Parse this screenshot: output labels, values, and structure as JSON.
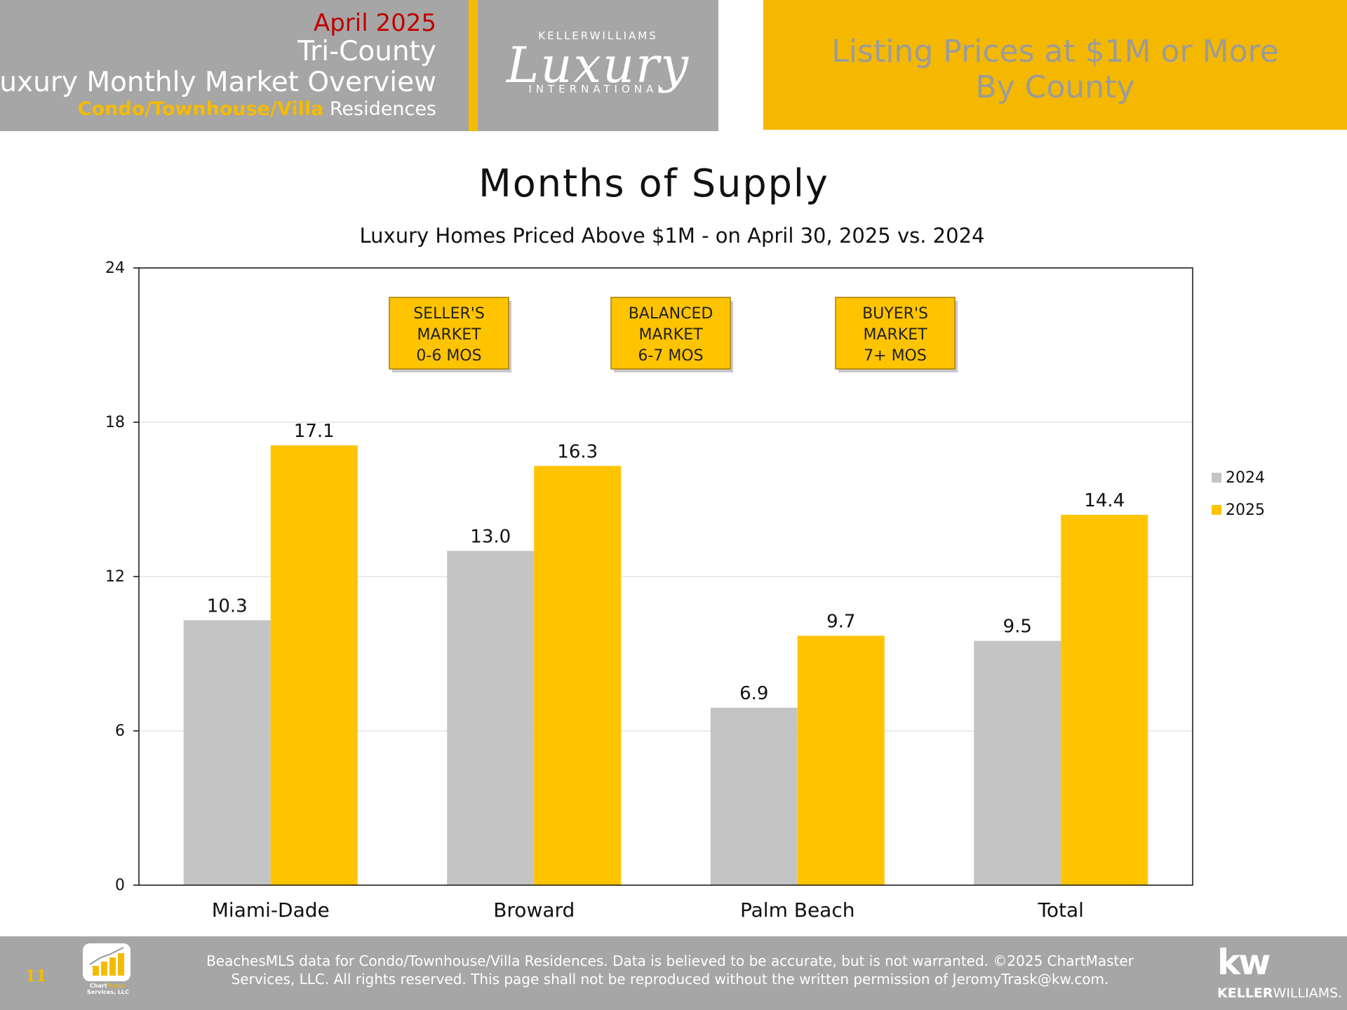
{
  "header": {
    "month": "April 2025",
    "region": "Tri-County",
    "overview": "Luxury Monthly Market Overview",
    "property_type_highlight": "Condo/Townhouse/Villa",
    "property_type_rest": " Residences",
    "right_title_line1": "Listing Prices at $1M or More",
    "right_title_line2": "By County",
    "logo": {
      "top": "KELLERWILLIAMS",
      "script": "Luxury",
      "bottom": "INTERNATIONAL"
    }
  },
  "colors": {
    "header_gray": "#a6a6a6",
    "accent_gold": "#f5bb00",
    "series_2024": "#c4c4c4",
    "series_2025": "#ffc400",
    "month_red": "#c00000"
  },
  "chart_data": {
    "type": "bar",
    "title": "Months of Supply",
    "subtitle": "Luxury Homes Priced Above $1M - on April 30,  2025 vs. 2024",
    "categories": [
      "Miami-Dade",
      "Broward",
      "Palm Beach",
      "Total"
    ],
    "series": [
      {
        "name": "2024",
        "values": [
          10.3,
          13.0,
          6.9,
          9.5
        ],
        "labels": [
          "10.3",
          "13.0",
          "6.9",
          "9.5"
        ]
      },
      {
        "name": "2025",
        "values": [
          17.1,
          16.3,
          9.7,
          14.4
        ],
        "labels": [
          "17.1",
          "16.3",
          "9.7",
          "14.4"
        ]
      }
    ],
    "ylim": [
      0,
      24
    ],
    "yticks": [
      0,
      6,
      12,
      18,
      24
    ],
    "ytick_labels": [
      "0",
      "6",
      "12",
      "18",
      "24"
    ],
    "grid": true,
    "legend_position": "right",
    "annotations": [
      {
        "lines": [
          "SELLER'S",
          "MARKET",
          "0-6 MOS"
        ]
      },
      {
        "lines": [
          "BALANCED",
          "MARKET",
          "6-7 MOS"
        ]
      },
      {
        "lines": [
          "BUYER'S",
          "MARKET",
          "7+ MOS"
        ]
      }
    ]
  },
  "footer": {
    "page_number": "11",
    "chartmaster_line1_a": "Chart",
    "chartmaster_line1_b": "Master",
    "chartmaster_line2": "Services, LLC",
    "disclaimer_line1": "BeachesMLS data for Condo/Townhouse/Villa Residences.  Data is believed to be accurate, but is not warranted.   ©2025  ChartMaster",
    "disclaimer_line2": "Services, LLC.  All rights reserved. This page shall not be reproduced without the written permission of JeromyTrask@kw.com.",
    "kw_mark": "kw",
    "kw_name_bold": "KELLER",
    "kw_name_rest": "WILLIAMS."
  }
}
